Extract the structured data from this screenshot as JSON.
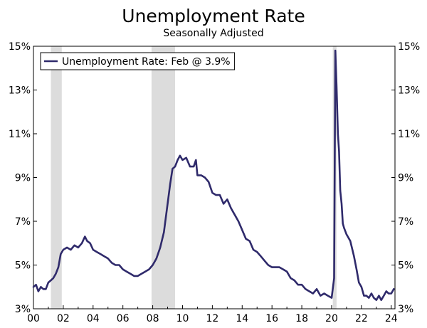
{
  "chart_data": {
    "type": "line",
    "title": "Unemployment Rate",
    "subtitle": "Seasonally Adjusted",
    "xlabel": "",
    "ylabel": "",
    "xlim": [
      2000.0,
      2024.25
    ],
    "ylim": [
      3,
      15
    ],
    "y_ticks": [
      "3%",
      "5%",
      "7%",
      "9%",
      "11%",
      "13%",
      "15%"
    ],
    "y_tick_values": [
      3,
      5,
      7,
      9,
      11,
      13,
      15
    ],
    "x_ticks": [
      "00",
      "02",
      "04",
      "06",
      "08",
      "10",
      "12",
      "14",
      "16",
      "18",
      "20",
      "22",
      "24"
    ],
    "x_tick_values": [
      2000,
      2002,
      2004,
      2006,
      2008,
      2010,
      2012,
      2014,
      2016,
      2018,
      2020,
      2022,
      2024
    ],
    "axes": "both",
    "legend_position": "top-left",
    "recessions": [
      [
        2001.17,
        2001.9
      ],
      [
        2007.92,
        2009.5
      ],
      [
        2020.08,
        2020.33
      ]
    ],
    "series": [
      {
        "name": "Unemployment Rate: Feb @ 3.9%",
        "color": "#2f2a6b",
        "points": [
          [
            2000.0,
            4.0
          ],
          [
            2000.17,
            4.1
          ],
          [
            2000.33,
            3.8
          ],
          [
            2000.5,
            4.0
          ],
          [
            2000.67,
            3.9
          ],
          [
            2000.83,
            3.9
          ],
          [
            2001.0,
            4.2
          ],
          [
            2001.17,
            4.3
          ],
          [
            2001.33,
            4.4
          ],
          [
            2001.5,
            4.6
          ],
          [
            2001.67,
            4.9
          ],
          [
            2001.83,
            5.5
          ],
          [
            2002.0,
            5.7
          ],
          [
            2002.25,
            5.8
          ],
          [
            2002.5,
            5.7
          ],
          [
            2002.75,
            5.9
          ],
          [
            2003.0,
            5.8
          ],
          [
            2003.25,
            6.0
          ],
          [
            2003.45,
            6.3
          ],
          [
            2003.6,
            6.1
          ],
          [
            2003.8,
            6.0
          ],
          [
            2004.0,
            5.7
          ],
          [
            2004.25,
            5.6
          ],
          [
            2004.5,
            5.5
          ],
          [
            2004.75,
            5.4
          ],
          [
            2005.0,
            5.3
          ],
          [
            2005.25,
            5.1
          ],
          [
            2005.5,
            5.0
          ],
          [
            2005.75,
            5.0
          ],
          [
            2006.0,
            4.8
          ],
          [
            2006.25,
            4.7
          ],
          [
            2006.5,
            4.6
          ],
          [
            2006.75,
            4.5
          ],
          [
            2007.0,
            4.5
          ],
          [
            2007.25,
            4.6
          ],
          [
            2007.5,
            4.7
          ],
          [
            2007.75,
            4.8
          ],
          [
            2008.0,
            5.0
          ],
          [
            2008.25,
            5.3
          ],
          [
            2008.5,
            5.8
          ],
          [
            2008.75,
            6.5
          ],
          [
            2009.0,
            7.8
          ],
          [
            2009.17,
            8.7
          ],
          [
            2009.33,
            9.4
          ],
          [
            2009.5,
            9.5
          ],
          [
            2009.67,
            9.8
          ],
          [
            2009.83,
            10.0
          ],
          [
            2010.0,
            9.8
          ],
          [
            2010.25,
            9.9
          ],
          [
            2010.5,
            9.5
          ],
          [
            2010.75,
            9.5
          ],
          [
            2010.9,
            9.8
          ],
          [
            2011.0,
            9.1
          ],
          [
            2011.25,
            9.1
          ],
          [
            2011.5,
            9.0
          ],
          [
            2011.75,
            8.8
          ],
          [
            2012.0,
            8.3
          ],
          [
            2012.25,
            8.2
          ],
          [
            2012.5,
            8.2
          ],
          [
            2012.75,
            7.8
          ],
          [
            2013.0,
            8.0
          ],
          [
            2013.25,
            7.6
          ],
          [
            2013.5,
            7.3
          ],
          [
            2013.75,
            7.0
          ],
          [
            2014.0,
            6.6
          ],
          [
            2014.25,
            6.2
          ],
          [
            2014.5,
            6.1
          ],
          [
            2014.75,
            5.7
          ],
          [
            2015.0,
            5.6
          ],
          [
            2015.25,
            5.4
          ],
          [
            2015.5,
            5.2
          ],
          [
            2015.75,
            5.0
          ],
          [
            2016.0,
            4.9
          ],
          [
            2016.25,
            4.9
          ],
          [
            2016.5,
            4.9
          ],
          [
            2016.75,
            4.8
          ],
          [
            2017.0,
            4.7
          ],
          [
            2017.25,
            4.4
          ],
          [
            2017.5,
            4.3
          ],
          [
            2017.75,
            4.1
          ],
          [
            2018.0,
            4.1
          ],
          [
            2018.25,
            3.9
          ],
          [
            2018.5,
            3.8
          ],
          [
            2018.75,
            3.7
          ],
          [
            2019.0,
            3.9
          ],
          [
            2019.25,
            3.6
          ],
          [
            2019.5,
            3.7
          ],
          [
            2019.75,
            3.6
          ],
          [
            2020.0,
            3.5
          ],
          [
            2020.17,
            4.4
          ],
          [
            2020.25,
            14.8
          ],
          [
            2020.33,
            13.2
          ],
          [
            2020.42,
            11.0
          ],
          [
            2020.5,
            10.2
          ],
          [
            2020.58,
            8.4
          ],
          [
            2020.67,
            7.8
          ],
          [
            2020.75,
            6.9
          ],
          [
            2020.83,
            6.7
          ],
          [
            2021.0,
            6.4
          ],
          [
            2021.25,
            6.1
          ],
          [
            2021.5,
            5.4
          ],
          [
            2021.67,
            4.8
          ],
          [
            2021.83,
            4.2
          ],
          [
            2022.0,
            4.0
          ],
          [
            2022.17,
            3.6
          ],
          [
            2022.33,
            3.6
          ],
          [
            2022.5,
            3.5
          ],
          [
            2022.67,
            3.7
          ],
          [
            2022.83,
            3.5
          ],
          [
            2023.0,
            3.4
          ],
          [
            2023.17,
            3.6
          ],
          [
            2023.33,
            3.4
          ],
          [
            2023.5,
            3.6
          ],
          [
            2023.67,
            3.8
          ],
          [
            2023.83,
            3.7
          ],
          [
            2024.0,
            3.7
          ],
          [
            2024.17,
            3.9
          ]
        ]
      }
    ]
  }
}
